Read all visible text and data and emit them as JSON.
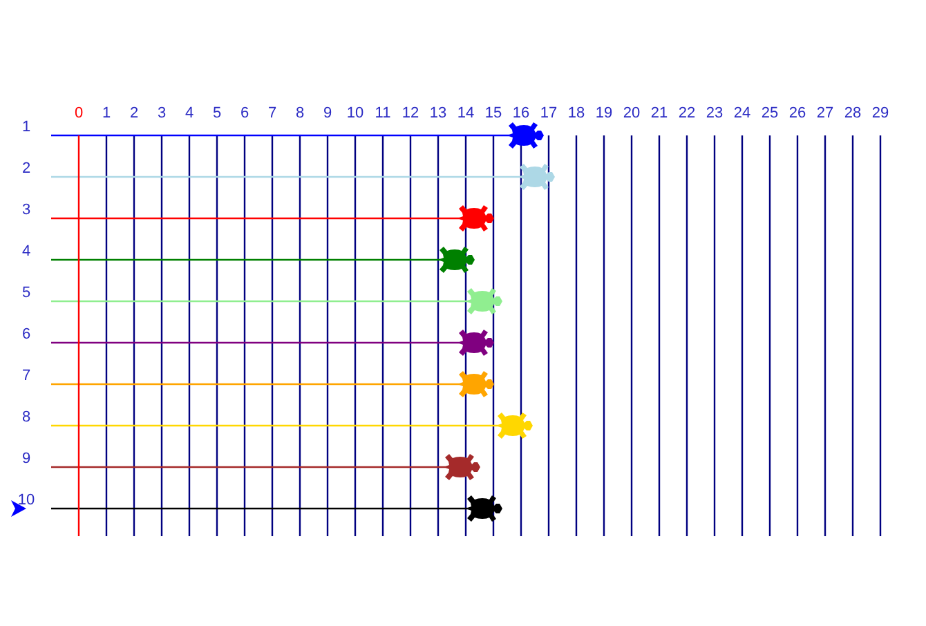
{
  "chart_data": {
    "type": "lollipop",
    "orientation": "horizontal",
    "categories": [
      "1",
      "2",
      "3",
      "4",
      "5",
      "6",
      "7",
      "8",
      "9",
      "10"
    ],
    "values": [
      16.1,
      16.5,
      14.3,
      13.6,
      14.6,
      14.3,
      14.3,
      15.7,
      13.8,
      14.6
    ],
    "colors": [
      "#0000ff",
      "#add8e6",
      "#ff0000",
      "#008000",
      "#90ee90",
      "#800080",
      "#ffa500",
      "#ffd700",
      "#a52a2a",
      "#000000"
    ],
    "xlim": [
      -1,
      29
    ],
    "xticks": [
      0,
      1,
      2,
      3,
      4,
      5,
      6,
      7,
      8,
      9,
      10,
      11,
      12,
      13,
      14,
      15,
      16,
      17,
      18,
      19,
      20,
      21,
      22,
      23,
      24,
      25,
      26,
      27,
      28,
      29
    ],
    "grid": "x",
    "ref_lines": [
      {
        "axis": "x",
        "value": 0,
        "color": "#ff0000"
      }
    ]
  }
}
